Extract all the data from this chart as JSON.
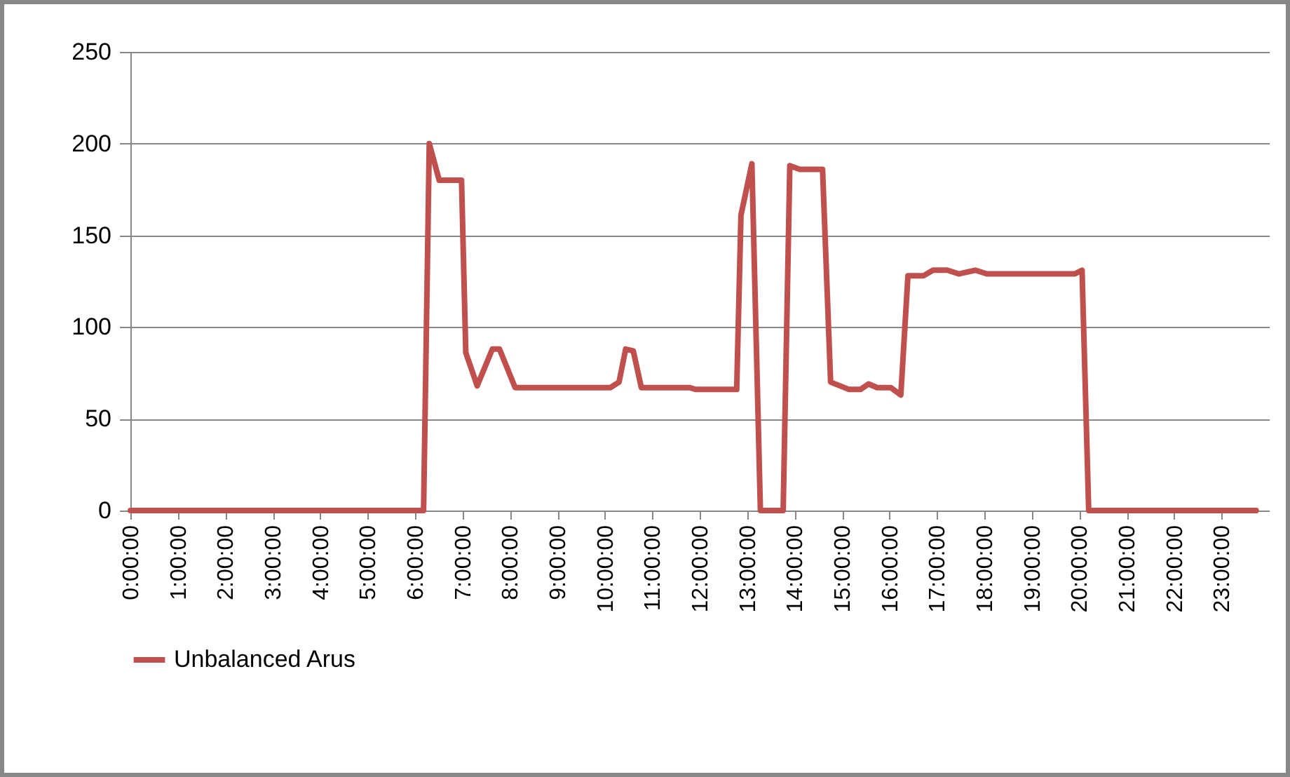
{
  "chart_data": {
    "type": "line",
    "x": [
      0,
      6.18,
      6.3,
      6.51,
      6.98,
      7.07,
      7.31,
      7.63,
      7.78,
      8.11,
      10.12,
      10.3,
      10.44,
      10.6,
      10.77,
      11.78,
      11.92,
      12.78,
      12.87,
      13.1,
      13.28,
      13.76,
      13.9,
      14.11,
      14.59,
      14.76,
      15.15,
      15.39,
      15.56,
      15.74,
      16.03,
      16.24,
      16.39,
      16.72,
      16.92,
      17.22,
      17.46,
      17.81,
      18.05,
      19.91,
      20.06,
      20.2,
      23.73
    ],
    "series": [
      {
        "name": "Unbalanced Arus",
        "color": "#c0504d",
        "values": [
          0,
          0,
          200,
          180,
          180,
          86,
          68,
          88,
          88,
          67,
          67,
          70,
          88,
          87,
          67,
          67,
          66,
          66,
          161,
          189,
          0,
          0,
          188,
          186,
          186,
          70,
          66,
          66,
          69,
          67,
          67,
          63,
          128,
          128,
          131,
          131,
          129,
          131,
          129,
          129,
          131,
          0,
          0
        ]
      }
    ],
    "xlim": [
      0,
      24
    ],
    "xticks": [
      {
        "value": 0,
        "label": "0:00:00"
      },
      {
        "value": 1,
        "label": "1:00:00"
      },
      {
        "value": 2,
        "label": "2:00:00"
      },
      {
        "value": 3,
        "label": "3:00:00"
      },
      {
        "value": 4,
        "label": "4:00:00"
      },
      {
        "value": 5,
        "label": "5:00:00"
      },
      {
        "value": 6,
        "label": "6:00:00"
      },
      {
        "value": 7,
        "label": "7:00:00"
      },
      {
        "value": 8,
        "label": "8:00:00"
      },
      {
        "value": 9,
        "label": "9:00:00"
      },
      {
        "value": 10,
        "label": "10:00:00"
      },
      {
        "value": 11,
        "label": "11:00:00"
      },
      {
        "value": 12,
        "label": "12:00:00"
      },
      {
        "value": 13,
        "label": "13:00:00"
      },
      {
        "value": 14,
        "label": "14:00:00"
      },
      {
        "value": 15,
        "label": "15:00:00"
      },
      {
        "value": 16,
        "label": "16:00:00"
      },
      {
        "value": 17,
        "label": "17:00:00"
      },
      {
        "value": 18,
        "label": "18:00:00"
      },
      {
        "value": 19,
        "label": "19:00:00"
      },
      {
        "value": 20,
        "label": "20:00:00"
      },
      {
        "value": 21,
        "label": "21:00:00"
      },
      {
        "value": 22,
        "label": "22:00:00"
      },
      {
        "value": 23,
        "label": "23:00:00"
      }
    ],
    "ylim": [
      0,
      250
    ],
    "yticks": [
      0,
      50,
      100,
      150,
      200,
      250
    ],
    "grid": "y",
    "legend": "bottom",
    "marker": "none",
    "line_style": "solid"
  }
}
